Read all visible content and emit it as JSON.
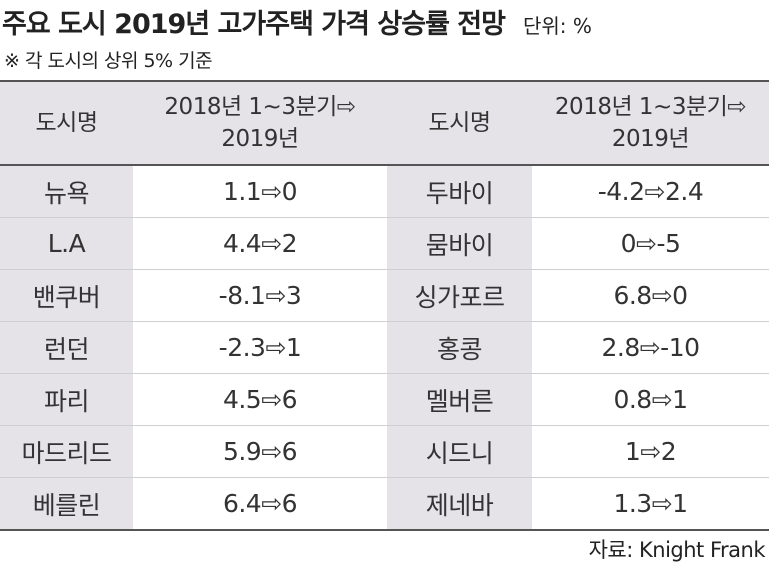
{
  "title": "주요 도시 2019년 고가주택 가격 상승률 전망",
  "unit": "단위: %",
  "note": "※ 각 도시의 상위 5% 기준",
  "source": "자료: Knight Frank",
  "headers": {
    "city": "도시명",
    "period_line1": "2018년 1~3분기⇨",
    "period_line2": "2019년"
  },
  "chart_data": {
    "type": "table",
    "columns": [
      "도시명",
      "2018년 1~3분기⇨ 2019년",
      "도시명",
      "2018년 1~3분기⇨ 2019년"
    ],
    "rows": [
      {
        "left_city": "뉴욕",
        "left_value": "1.1⇨0",
        "right_city": "두바이",
        "right_value": "-4.2⇨2.4"
      },
      {
        "left_city": "L.A",
        "left_value": "4.4⇨2",
        "right_city": "뭄바이",
        "right_value": "0⇨-5"
      },
      {
        "left_city": "밴쿠버",
        "left_value": "-8.1⇨3",
        "right_city": "싱가포르",
        "right_value": "6.8⇨0"
      },
      {
        "left_city": "런던",
        "left_value": "-2.3⇨1",
        "right_city": "홍콩",
        "right_value": "2.8⇨-10"
      },
      {
        "left_city": "파리",
        "left_value": "4.5⇨6",
        "right_city": "멜버른",
        "right_value": "0.8⇨1"
      },
      {
        "left_city": "마드리드",
        "left_value": "5.9⇨6",
        "right_city": "시드니",
        "right_value": "1⇨2"
      },
      {
        "left_city": "베를린",
        "left_value": "6.4⇨6",
        "right_city": "제네바",
        "right_value": "1.3⇨1"
      }
    ]
  }
}
